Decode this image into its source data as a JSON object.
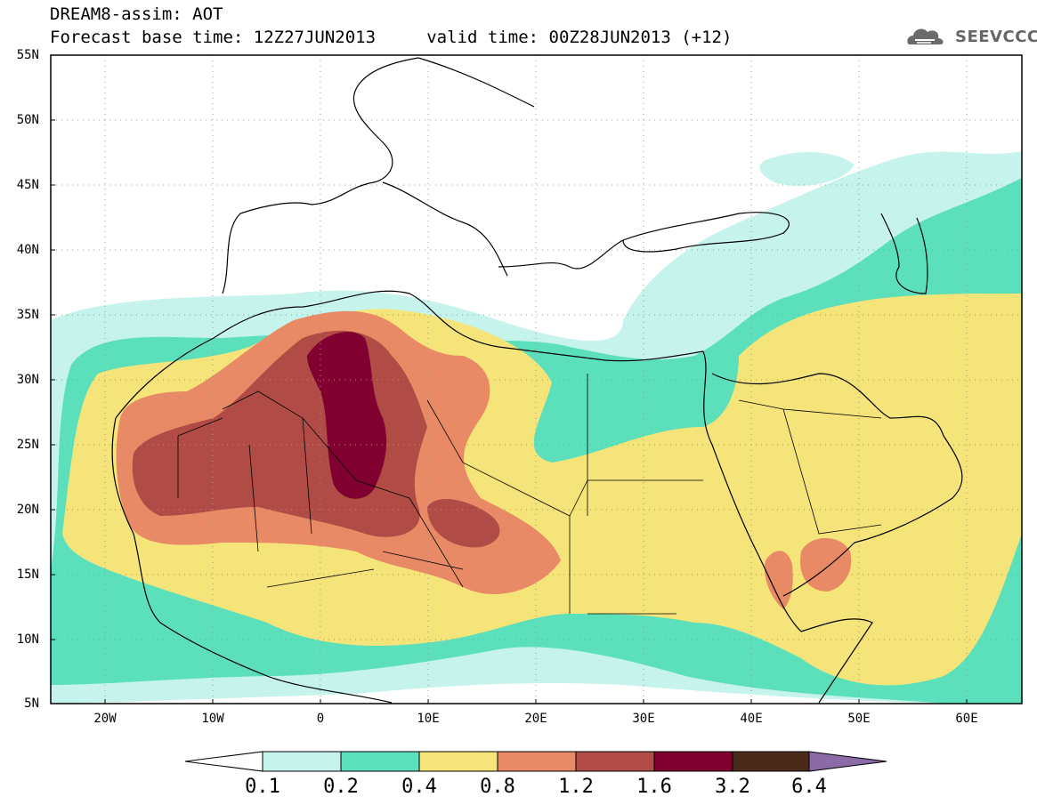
{
  "header": {
    "title_line1": "DREAM8-assim: AOT",
    "title_line2": "Forecast base time: 12Z27JUN2013     valid time: 00Z28JUN2013 (+12)"
  },
  "logo": {
    "text": "SEEVCCC",
    "icon": "cloud-icon",
    "color": "#6b6b6b"
  },
  "map": {
    "lat_ticks": [
      "55N",
      "50N",
      "45N",
      "40N",
      "35N",
      "30N",
      "25N",
      "20N",
      "15N",
      "10N",
      "5N"
    ],
    "lon_ticks": [
      "20W",
      "10W",
      "0",
      "10E",
      "20E",
      "30E",
      "40E",
      "50E",
      "60E"
    ],
    "lon_range": [
      -25,
      65
    ],
    "lat_range": [
      5,
      55
    ]
  },
  "colorbar": {
    "labels": [
      "0.1",
      "0.2",
      "0.4",
      "0.8",
      "1.2",
      "1.6",
      "3.2",
      "6.4"
    ],
    "colors": [
      "#ffffff",
      "#c6f3ec",
      "#5ce0bb",
      "#f5e47a",
      "#e88a66",
      "#b04c45",
      "#800030",
      "#4a2b1a",
      "#8c6aa6"
    ]
  },
  "colors": {
    "level_01": "#c6f3ec",
    "level_02": "#5ce0bb",
    "level_04": "#f5e47a",
    "level_08": "#e88a66",
    "level_12": "#b04c45",
    "level_16": "#800030"
  }
}
